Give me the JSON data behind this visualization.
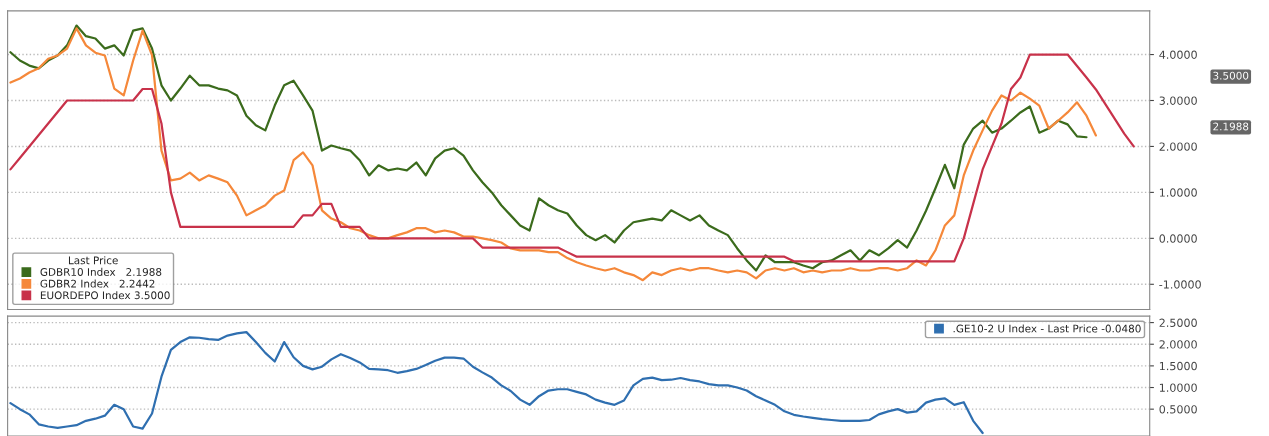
{
  "chart_data": [
    {
      "type": "line",
      "categories": [
        null,
        null,
        null,
        null,
        null,
        null,
        null,
        null,
        null,
        null,
        null,
        null,
        null,
        null,
        null,
        null,
        null,
        null,
        null,
        null,
        null,
        null,
        null,
        null,
        null,
        null,
        null,
        null,
        null,
        null,
        null,
        null,
        null,
        null,
        null,
        null,
        null,
        null,
        null,
        null,
        null,
        null,
        null,
        null,
        null,
        null,
        null,
        null,
        null,
        null,
        null,
        null,
        null,
        null,
        null,
        null,
        null,
        null,
        null,
        null,
        null,
        null,
        null,
        null,
        null,
        null,
        null,
        null,
        null,
        null,
        null,
        null,
        null,
        null,
        null,
        null,
        null,
        null,
        null,
        null,
        null,
        null,
        null,
        null,
        null,
        null,
        null,
        null,
        null,
        null,
        null,
        null,
        null,
        null,
        null,
        null,
        null,
        null,
        null,
        null,
        null,
        null,
        null,
        null,
        null,
        null,
        null,
        null,
        null,
        null,
        null,
        null,
        null,
        null,
        null,
        null,
        null,
        null,
        null,
        null
      ],
      "series": [
        {
          "name": "GDBR10 Index   2.1988",
          "color": "#3b6b1c",
          "values": [
            4.05,
            3.87,
            3.76,
            3.7,
            3.87,
            3.98,
            4.2,
            4.63,
            4.4,
            4.35,
            4.13,
            4.2,
            3.98,
            4.52,
            4.57,
            4.13,
            3.33,
            3.0,
            3.26,
            3.54,
            3.33,
            3.33,
            3.26,
            3.22,
            3.11,
            2.67,
            2.46,
            2.35,
            2.89,
            3.33,
            3.43,
            3.11,
            2.78,
            1.91,
            2.02,
            1.96,
            1.91,
            1.7,
            1.37,
            1.59,
            1.48,
            1.52,
            1.48,
            1.65,
            1.37,
            1.74,
            1.91,
            1.96,
            1.8,
            1.48,
            1.22,
            1.0,
            0.72,
            0.5,
            0.28,
            0.17,
            0.87,
            0.72,
            0.61,
            0.54,
            0.28,
            0.07,
            -0.04,
            0.07,
            -0.09,
            0.17,
            0.35,
            0.39,
            0.43,
            0.39,
            0.61,
            0.5,
            0.39,
            0.5,
            0.28,
            0.17,
            0.07,
            -0.22,
            -0.48,
            -0.7,
            -0.37,
            -0.52,
            -0.52,
            -0.52,
            -0.59,
            -0.65,
            -0.52,
            -0.48,
            -0.37,
            -0.26,
            -0.48,
            -0.26,
            -0.37,
            -0.22,
            -0.04,
            -0.2,
            0.17,
            0.6,
            1.09,
            1.6,
            1.09,
            2.04,
            2.39,
            2.56,
            2.3,
            2.39,
            2.56,
            2.74,
            2.87,
            2.3,
            2.39,
            2.56,
            2.48,
            2.22,
            2.2,
            null,
            null,
            null,
            null,
            null
          ]
        },
        {
          "name": "GDBR2 Index   2.2442",
          "color": "#f5883a",
          "values": [
            3.39,
            3.48,
            3.61,
            3.7,
            3.91,
            3.98,
            4.13,
            4.57,
            4.2,
            4.04,
            3.98,
            3.26,
            3.11,
            3.87,
            4.52,
            3.98,
            1.91,
            1.26,
            1.3,
            1.43,
            1.26,
            1.37,
            1.3,
            1.22,
            0.93,
            0.5,
            0.61,
            0.72,
            0.93,
            1.04,
            1.7,
            1.87,
            1.59,
            0.61,
            0.43,
            0.35,
            0.22,
            0.17,
            0.07,
            0.0,
            0.0,
            0.07,
            0.13,
            0.22,
            0.22,
            0.13,
            0.17,
            0.13,
            0.04,
            0.04,
            0.0,
            -0.04,
            -0.09,
            -0.22,
            -0.26,
            -0.26,
            -0.26,
            -0.3,
            -0.3,
            -0.43,
            -0.52,
            -0.59,
            -0.65,
            -0.7,
            -0.65,
            -0.74,
            -0.8,
            -0.91,
            -0.74,
            -0.8,
            -0.7,
            -0.65,
            -0.7,
            -0.65,
            -0.65,
            -0.7,
            -0.74,
            -0.7,
            -0.74,
            -0.87,
            -0.7,
            -0.65,
            -0.7,
            -0.65,
            -0.74,
            -0.7,
            -0.74,
            -0.7,
            -0.7,
            -0.65,
            -0.7,
            -0.7,
            -0.65,
            -0.65,
            -0.7,
            -0.65,
            -0.48,
            -0.59,
            -0.26,
            0.28,
            0.5,
            1.37,
            1.91,
            2.35,
            2.78,
            3.11,
            3.0,
            3.17,
            3.04,
            2.89,
            2.39,
            2.56,
            2.74,
            2.96,
            2.67,
            2.24,
            null,
            null,
            null,
            null
          ]
        },
        {
          "name": "EUORDEPO Index 3.5000",
          "color": "#c8324a",
          "values": [
            1.5,
            1.75,
            2.0,
            2.25,
            2.5,
            2.75,
            3.0,
            3.0,
            3.0,
            3.0,
            3.0,
            3.0,
            3.0,
            3.0,
            3.25,
            3.25,
            2.5,
            1.0,
            0.25,
            0.25,
            0.25,
            0.25,
            0.25,
            0.25,
            0.25,
            0.25,
            0.25,
            0.25,
            0.25,
            0.25,
            0.25,
            0.5,
            0.5,
            0.75,
            0.75,
            0.25,
            0.25,
            0.25,
            0.0,
            0.0,
            0.0,
            0.0,
            0.0,
            0.0,
            0.0,
            0.0,
            0.0,
            0.0,
            0.0,
            0.0,
            -0.2,
            -0.2,
            -0.2,
            -0.2,
            -0.2,
            -0.2,
            -0.2,
            -0.2,
            -0.2,
            -0.3,
            -0.4,
            -0.4,
            -0.4,
            -0.4,
            -0.4,
            -0.4,
            -0.4,
            -0.4,
            -0.4,
            -0.4,
            -0.4,
            -0.4,
            -0.4,
            -0.4,
            -0.4,
            -0.4,
            -0.4,
            -0.4,
            -0.4,
            -0.4,
            -0.4,
            -0.4,
            -0.4,
            -0.5,
            -0.5,
            -0.5,
            -0.5,
            -0.5,
            -0.5,
            -0.5,
            -0.5,
            -0.5,
            -0.5,
            -0.5,
            -0.5,
            -0.5,
            -0.5,
            -0.5,
            -0.5,
            -0.5,
            -0.5,
            0.0,
            0.75,
            1.5,
            2.0,
            2.5,
            3.25,
            3.5,
            4.0,
            4.0,
            4.0,
            4.0,
            4.0,
            3.75,
            3.5,
            3.24,
            2.92,
            2.6,
            2.28,
            2.0
          ]
        }
      ],
      "legend_title": "Last Price",
      "legend": "bottom left",
      "ylim": [
        -1.55,
        4.95
      ],
      "yticks": [
        {
          "value": -1,
          "label": "-1.0000"
        },
        {
          "value": 0,
          "label": "0.0000"
        },
        {
          "value": 1,
          "label": "1.0000"
        },
        {
          "value": 2,
          "label": "2.0000"
        },
        {
          "value": 3,
          "label": "3.0000"
        },
        {
          "value": 4,
          "label": "4.0000"
        }
      ],
      "grid": "y",
      "tick_labels": "y",
      "annotations": [
        "3.5000",
        "2.1988"
      ]
    },
    {
      "type": "line",
      "categories": [
        null,
        null,
        null,
        null,
        null,
        null,
        null,
        null,
        null,
        null,
        null,
        null,
        null,
        null,
        null,
        null,
        null,
        null,
        null,
        null,
        null,
        null,
        null,
        null,
        null,
        null,
        null,
        null,
        null,
        null,
        null,
        null,
        null,
        null,
        null,
        null,
        null,
        null,
        null,
        null,
        null,
        null,
        null,
        null,
        null,
        null,
        null,
        null,
        null,
        null,
        null,
        null,
        null,
        null,
        null,
        null,
        null,
        null,
        null,
        null,
        null,
        null,
        null,
        null,
        null,
        null,
        null,
        null,
        null,
        null,
        null,
        null,
        null,
        null,
        null,
        null,
        null,
        null,
        null,
        null,
        null,
        null,
        null,
        null,
        null,
        null,
        null,
        null,
        null,
        null,
        null,
        null,
        null,
        null,
        null,
        null,
        null,
        null,
        null,
        null,
        null,
        null,
        null,
        null,
        null,
        null,
        null,
        null,
        null,
        null,
        null,
        null,
        null,
        null,
        null,
        null,
        null,
        null,
        null,
        null
      ],
      "series": [
        {
          "name": ".GE10-2 U Index - Last Price -0.0480",
          "color": "#2f6fb0",
          "values": [
            0.64,
            0.5,
            0.38,
            0.15,
            0.1,
            0.07,
            0.1,
            0.13,
            0.23,
            0.28,
            0.35,
            0.6,
            0.5,
            0.1,
            0.05,
            0.4,
            1.25,
            1.87,
            2.05,
            2.16,
            2.15,
            2.12,
            2.1,
            2.2,
            2.25,
            2.28,
            2.05,
            1.8,
            1.6,
            2.05,
            1.7,
            1.5,
            1.42,
            1.48,
            1.65,
            1.77,
            1.68,
            1.58,
            1.43,
            1.42,
            1.4,
            1.34,
            1.38,
            1.43,
            1.52,
            1.62,
            1.69,
            1.69,
            1.67,
            1.48,
            1.35,
            1.23,
            1.05,
            0.92,
            0.72,
            0.6,
            0.8,
            0.93,
            0.96,
            0.96,
            0.9,
            0.84,
            0.72,
            0.65,
            0.6,
            0.7,
            1.05,
            1.2,
            1.23,
            1.17,
            1.18,
            1.22,
            1.17,
            1.14,
            1.08,
            1.05,
            1.05,
            1.0,
            0.93,
            0.8,
            0.7,
            0.6,
            0.45,
            0.37,
            0.33,
            0.3,
            0.27,
            0.25,
            0.23,
            0.23,
            0.23,
            0.25,
            0.38,
            0.45,
            0.5,
            0.42,
            0.45,
            0.65,
            0.72,
            0.75,
            0.6,
            0.66,
            0.23,
            -0.05,
            null,
            null,
            null,
            null,
            null,
            null,
            null,
            null,
            null,
            null,
            null,
            null,
            null,
            null,
            null,
            null
          ]
        }
      ],
      "legend": "top right",
      "ylim": [
        -0.12,
        2.65
      ],
      "yticks": [
        {
          "value": 0.5,
          "label": "0.5000"
        },
        {
          "value": 1,
          "label": "1.0000"
        },
        {
          "value": 1.5,
          "label": "1.5000"
        },
        {
          "value": 2,
          "label": "2.0000"
        },
        {
          "value": 2.5,
          "label": "2.5000"
        }
      ],
      "grid": "y",
      "tick_labels": "y"
    }
  ]
}
